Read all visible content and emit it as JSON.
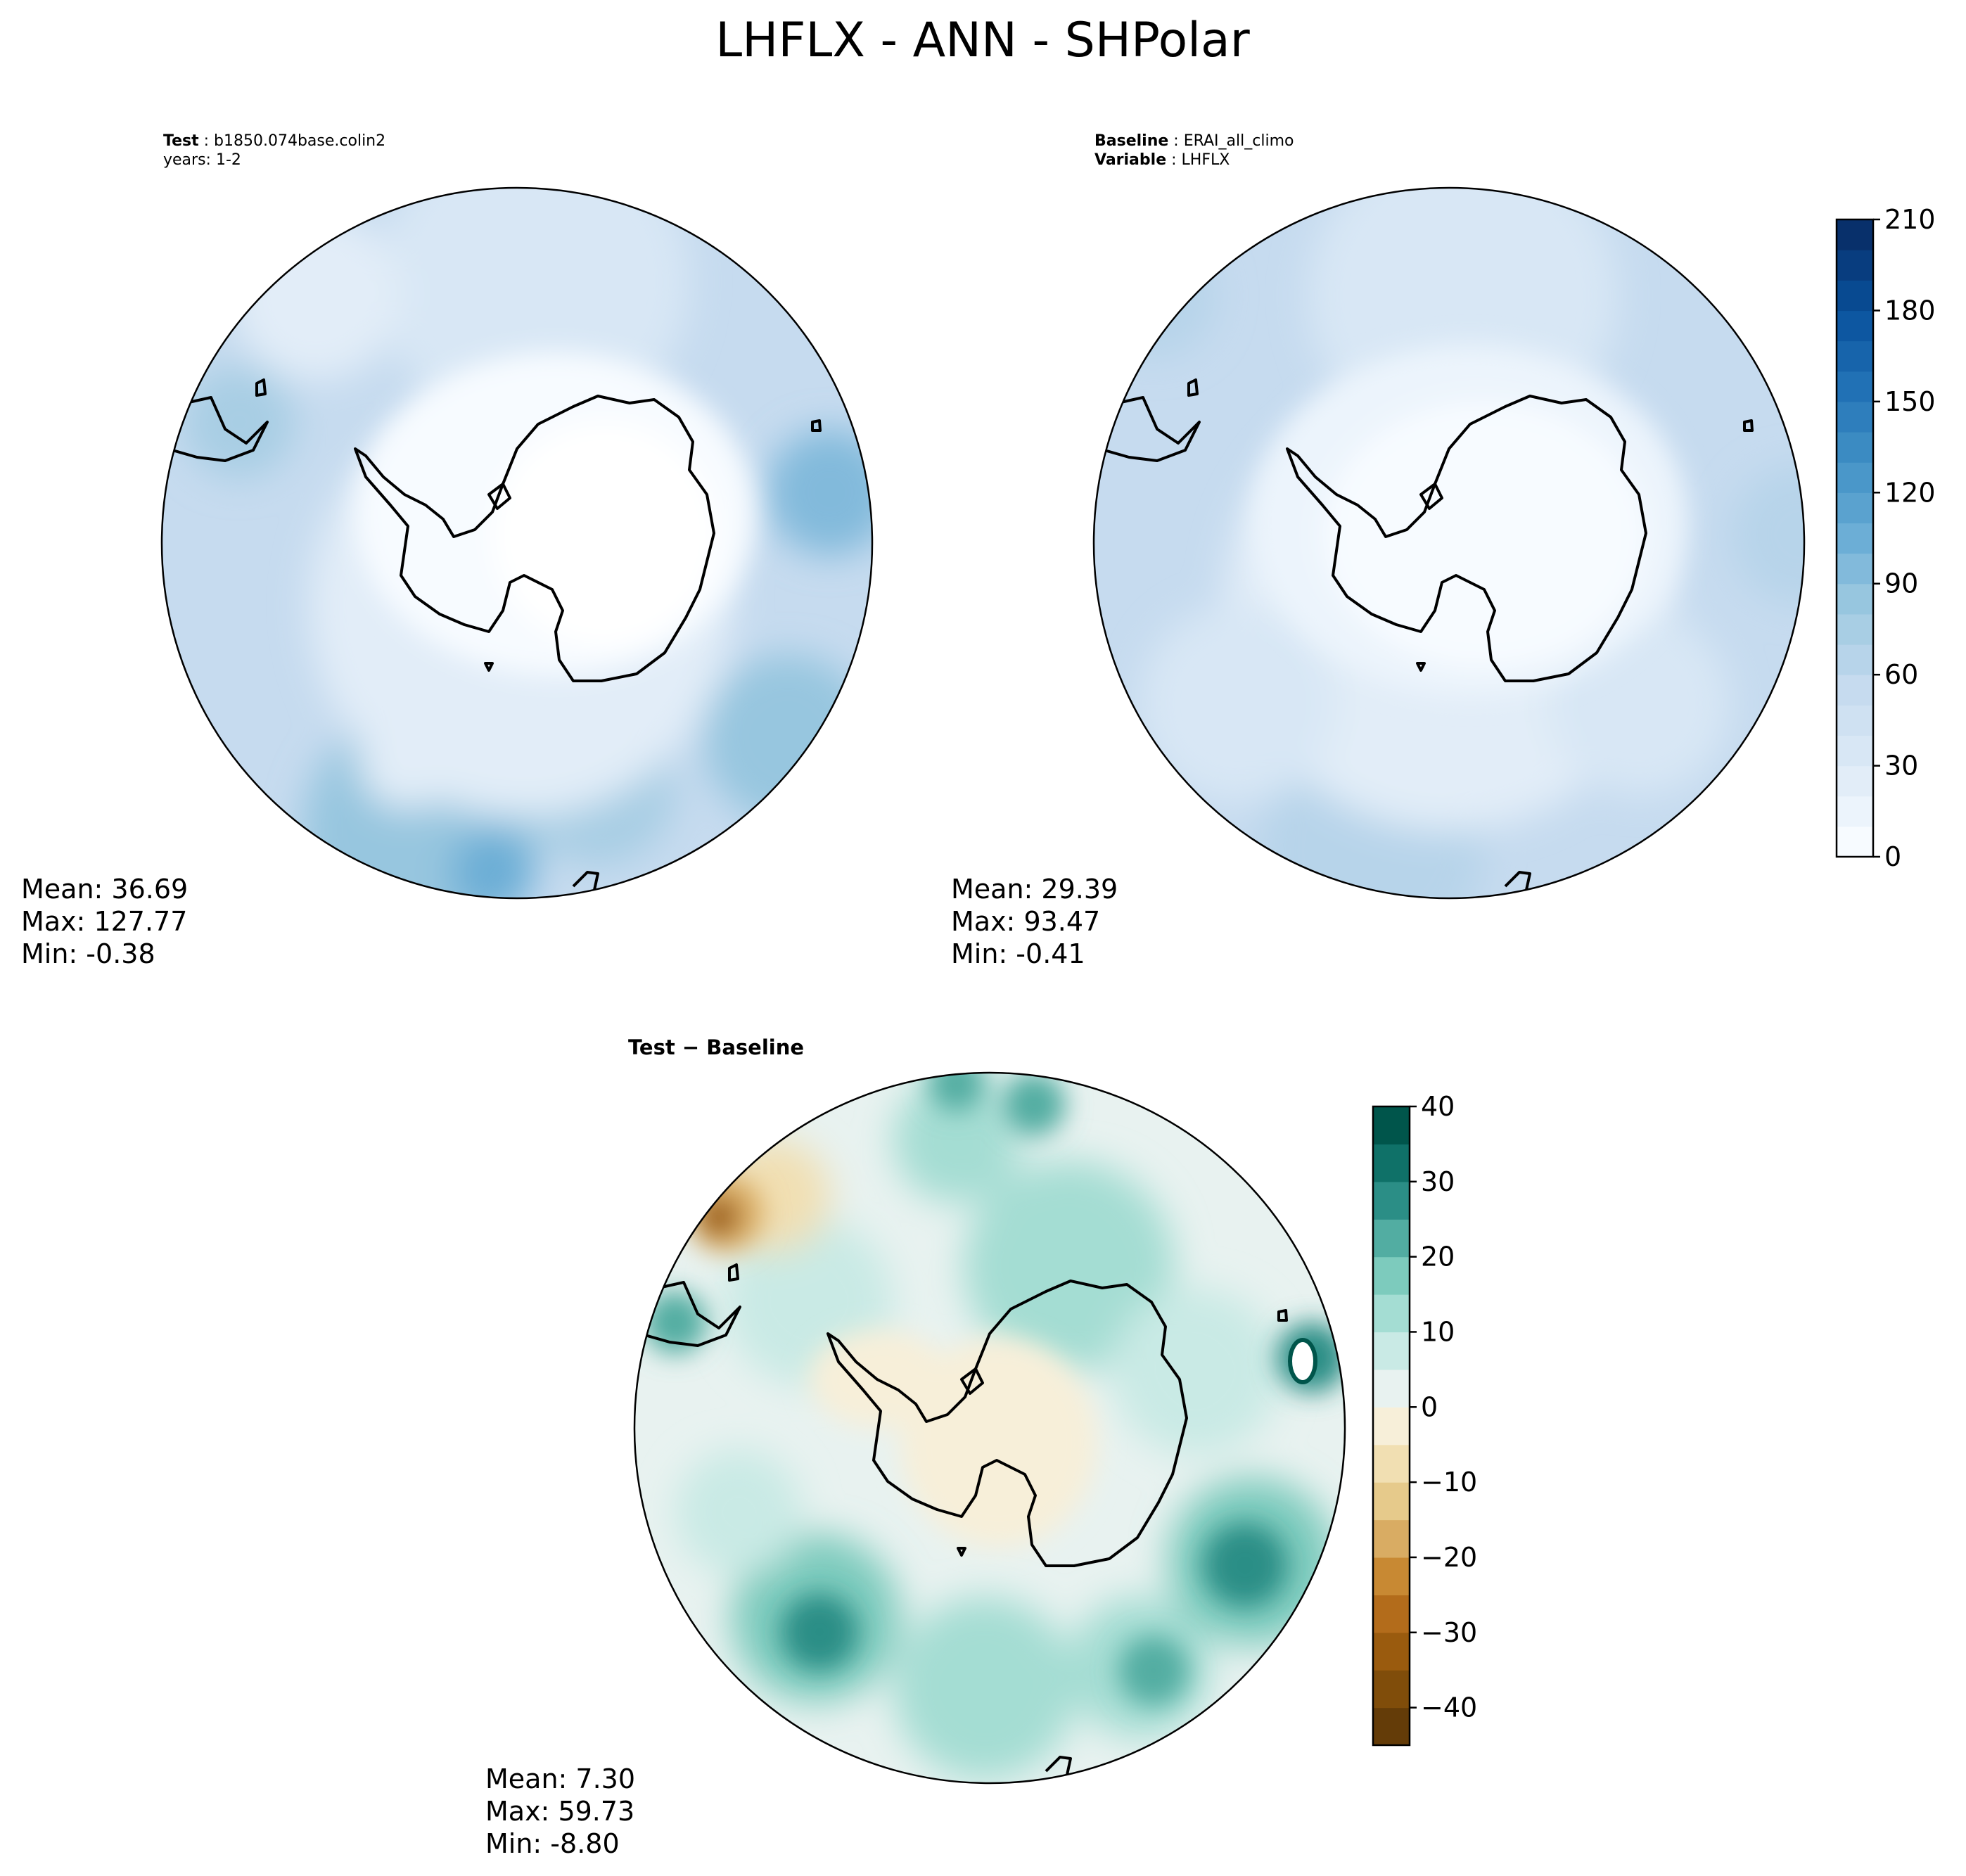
{
  "figure": {
    "title": "LHFLX - ANN - SHPolar"
  },
  "chart_data": [
    {
      "type": "heatmap",
      "panel": "test",
      "projection": "south-polar-stereographic",
      "header": [
        {
          "bold": "Test",
          "text": "b1850.074base.colin2"
        },
        {
          "bold": "",
          "text": "years: 1-2"
        }
      ],
      "stats": {
        "mean": "Mean: 36.69",
        "max": "Max: 127.77",
        "min": "Min: -0.38"
      },
      "colormap": "Blues"
    },
    {
      "type": "heatmap",
      "panel": "baseline",
      "projection": "south-polar-stereographic",
      "header": [
        {
          "bold": "Baseline",
          "text": "ERAI_all_climo"
        },
        {
          "bold": "Variable",
          "text": "LHFLX"
        }
      ],
      "stats": {
        "mean": "Mean: 29.39",
        "max": "Max: 93.47",
        "min": "Min: -0.41"
      },
      "colormap": "Blues",
      "colorbar": {
        "range": [
          0,
          210
        ],
        "levels": [
          0,
          10,
          20,
          30,
          40,
          50,
          60,
          70,
          80,
          90,
          100,
          110,
          120,
          130,
          140,
          150,
          160,
          170,
          180,
          190,
          200,
          210
        ],
        "ticks": [
          "0",
          "30",
          "60",
          "90",
          "120",
          "150",
          "180",
          "210"
        ],
        "colors": [
          "#f7fbff",
          "#ecf4fc",
          "#e2edf8",
          "#d8e7f5",
          "#cfe1f2",
          "#c6dbef",
          "#b7d4ea",
          "#a8cee4",
          "#97c6df",
          "#82badb",
          "#6caed6",
          "#5aa2cf",
          "#4a97c9",
          "#3b8bc2",
          "#2e7ebc",
          "#2171b5",
          "#1764ab",
          "#0d57a1",
          "#084a91",
          "#083d7f",
          "#08306b"
        ]
      }
    },
    {
      "type": "heatmap",
      "panel": "difference",
      "projection": "south-polar-stereographic",
      "header": [
        {
          "bold": "Test − Baseline",
          "text": ""
        }
      ],
      "stats": {
        "mean": "Mean:  7.30",
        "max": "Max: 59.73",
        "min": "Min: -8.80"
      },
      "colormap": "BrBG",
      "colorbar": {
        "range": [
          -45,
          40
        ],
        "levels": [
          -45,
          -40,
          -35,
          -30,
          -25,
          -20,
          -15,
          -10,
          -5,
          0,
          5,
          10,
          15,
          20,
          25,
          30,
          35,
          40
        ],
        "ticks": [
          "−40",
          "−30",
          "−20",
          "−10",
          "0",
          "10",
          "20",
          "30",
          "40"
        ],
        "tick_values": [
          -40,
          -30,
          -20,
          -10,
          0,
          10,
          20,
          30,
          40
        ],
        "colors": [
          "#643c08",
          "#804d0a",
          "#9a5b0e",
          "#b36c1b",
          "#c88933",
          "#d9ac63",
          "#e6ca8b",
          "#f1dfb2",
          "#f7efd9",
          "#e8f2f0",
          "#c9eae5",
          "#a4ddd3",
          "#7dcbbd",
          "#52ada2",
          "#2b8e86",
          "#0f7168",
          "#00554b"
        ]
      }
    }
  ]
}
